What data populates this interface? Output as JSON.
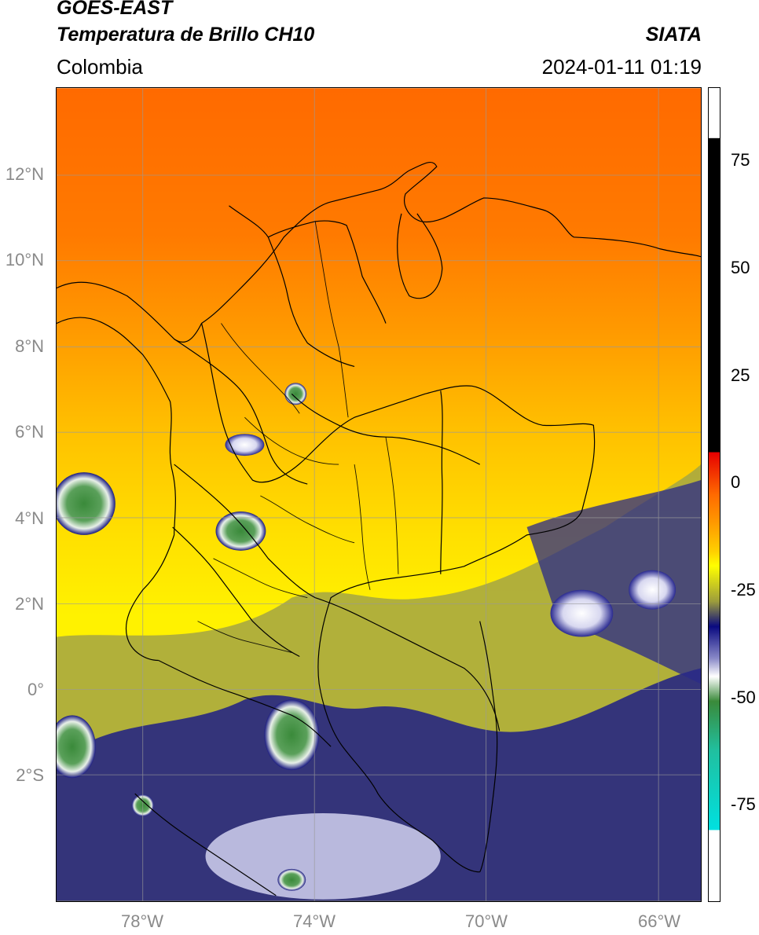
{
  "header": {
    "satellite": "GOES-EAST",
    "product": "Temperatura de Brillo CH10",
    "region": "Colombia",
    "source": "SIATA",
    "datetime": "2024-01-11 01:19"
  },
  "axes": {
    "lat_labels": [
      "12°N",
      "10°N",
      "8°N",
      "6°N",
      "4°N",
      "2°N",
      "0°",
      "2°S"
    ],
    "lon_labels": [
      "78°W",
      "74°W",
      "70°W",
      "66°W"
    ]
  },
  "colorbar": {
    "ticks": [
      "75",
      "50",
      "25",
      "0",
      "-25",
      "-50",
      "-75"
    ],
    "colors": {
      "black": "#000000",
      "red": "#e60000",
      "orange": "#ff8c00",
      "yellow": "#ffff00",
      "olive": "#9c9c3c",
      "navy": "#0a0a80",
      "white": "#ffffff",
      "green": "#3a8a3a",
      "teal": "#20c0a0",
      "cyan": "#00e0e0"
    }
  },
  "colors": {
    "gridline": "#9a9a9a",
    "border": "#000000"
  }
}
